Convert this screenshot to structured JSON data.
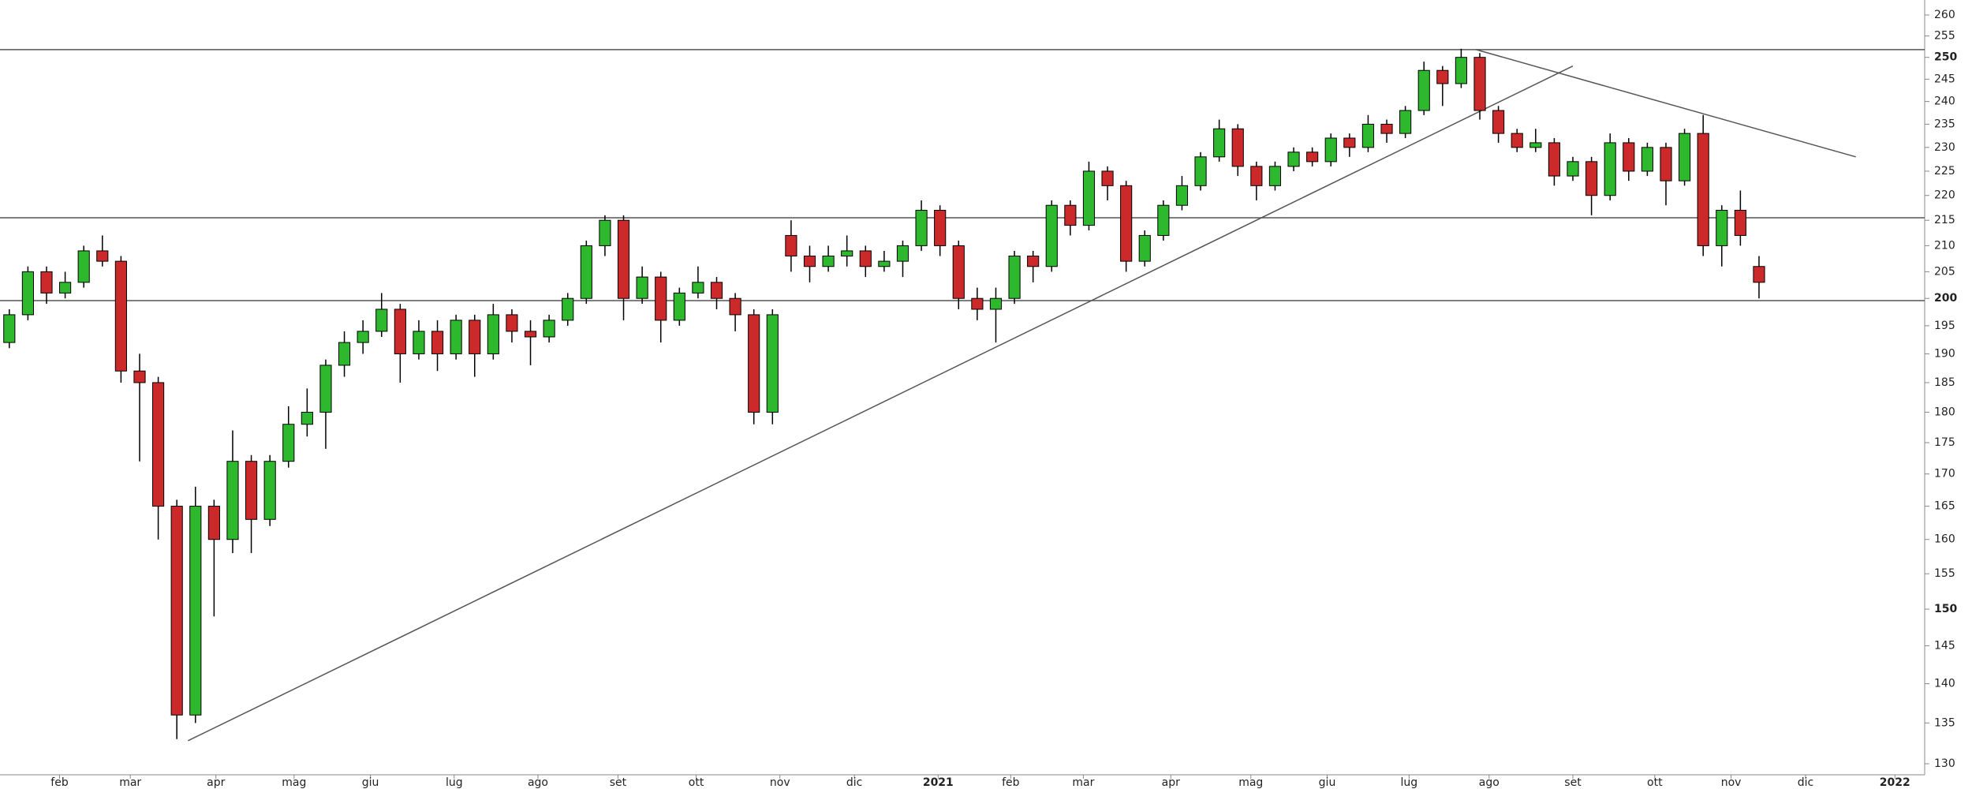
{
  "chart_data": {
    "type": "candlestick",
    "log_scale": true,
    "colors": {
      "up": "#2db82d",
      "down": "#cc2a2a",
      "outline": "#000000",
      "line": "#555555"
    },
    "open": [
      192,
      197,
      205,
      201,
      203,
      209,
      207,
      187,
      185,
      165,
      136,
      165,
      160,
      172,
      163,
      172,
      178,
      180,
      188,
      192,
      194,
      198,
      190,
      194,
      190,
      196,
      190,
      197,
      194,
      193,
      196,
      200,
      210,
      215,
      200,
      204,
      196,
      201,
      203,
      200,
      197,
      180,
      212,
      208,
      206,
      208,
      209,
      206,
      207,
      210,
      217,
      210,
      200,
      198,
      200,
      208,
      206,
      218,
      214,
      225,
      222,
      207,
      212,
      218,
      222,
      228,
      234,
      226,
      222,
      226,
      229,
      227,
      232,
      230,
      235,
      233,
      238,
      247,
      244,
      250,
      238,
      233,
      230,
      231,
      224,
      227,
      220,
      231,
      225,
      230,
      223,
      233,
      210,
      217,
      206
    ],
    "high": [
      198,
      206,
      206,
      205,
      210,
      212,
      208,
      190,
      186,
      166,
      168,
      166,
      177,
      173,
      173,
      181,
      184,
      189,
      194,
      196,
      201,
      199,
      196,
      196,
      197,
      197,
      199,
      198,
      196,
      197,
      201,
      211,
      216,
      216,
      206,
      205,
      202,
      206,
      204,
      201,
      198,
      198,
      215,
      210,
      210,
      212,
      210,
      209,
      211,
      219,
      218,
      211,
      202,
      202,
      209,
      209,
      219,
      219,
      227,
      226,
      223,
      213,
      219,
      224,
      229,
      236,
      235,
      227,
      227,
      230,
      230,
      233,
      233,
      237,
      236,
      239,
      249,
      248,
      252,
      251,
      239,
      234,
      234,
      232,
      228,
      228,
      233,
      232,
      231,
      231,
      234,
      237,
      218,
      221,
      208
    ],
    "low": [
      191,
      196,
      199,
      200,
      202,
      206,
      185,
      172,
      160,
      133,
      135,
      149,
      158,
      158,
      162,
      171,
      176,
      174,
      186,
      190,
      193,
      185,
      189,
      187,
      189,
      186,
      189,
      192,
      188,
      192,
      195,
      199,
      208,
      196,
      199,
      192,
      195,
      200,
      198,
      194,
      178,
      178,
      205,
      203,
      205,
      206,
      204,
      205,
      204,
      209,
      208,
      198,
      196,
      192,
      199,
      203,
      205,
      212,
      213,
      219,
      205,
      206,
      211,
      217,
      221,
      227,
      224,
      219,
      221,
      225,
      226,
      226,
      228,
      229,
      231,
      232,
      237,
      239,
      243,
      236,
      231,
      229,
      229,
      222,
      223,
      216,
      219,
      223,
      224,
      218,
      222,
      208,
      206,
      210,
      200
    ],
    "close": [
      197,
      205,
      201,
      203,
      209,
      207,
      187,
      185,
      165,
      136,
      165,
      160,
      172,
      163,
      172,
      178,
      180,
      188,
      192,
      194,
      198,
      190,
      194,
      190,
      196,
      190,
      197,
      194,
      193,
      196,
      200,
      210,
      215,
      200,
      204,
      196,
      201,
      203,
      200,
      197,
      180,
      197,
      208,
      206,
      208,
      209,
      206,
      207,
      210,
      217,
      210,
      200,
      198,
      200,
      208,
      206,
      218,
      214,
      225,
      222,
      207,
      212,
      218,
      222,
      228,
      234,
      226,
      222,
      226,
      229,
      227,
      232,
      230,
      235,
      233,
      238,
      247,
      244,
      250,
      238,
      233,
      230,
      231,
      224,
      227,
      220,
      231,
      225,
      230,
      223,
      233,
      210,
      217,
      212,
      203
    ],
    "xlim": [
      0,
      103.4
    ],
    "xticks": [
      {
        "value": 3.2,
        "label": "feb"
      },
      {
        "value": 7.0,
        "label": "mar"
      },
      {
        "value": 11.6,
        "label": "apr"
      },
      {
        "value": 15.8,
        "label": "mag"
      },
      {
        "value": 19.9,
        "label": "giu"
      },
      {
        "value": 24.4,
        "label": "lug"
      },
      {
        "value": 28.9,
        "label": "ago"
      },
      {
        "value": 33.2,
        "label": "set"
      },
      {
        "value": 37.4,
        "label": "ott"
      },
      {
        "value": 41.9,
        "label": "nov"
      },
      {
        "value": 45.9,
        "label": "dic"
      },
      {
        "value": 50.4,
        "label": "2021"
      },
      {
        "value": 54.3,
        "label": "feb"
      },
      {
        "value": 58.2,
        "label": "mar"
      },
      {
        "value": 62.9,
        "label": "apr"
      },
      {
        "value": 67.2,
        "label": "mag"
      },
      {
        "value": 71.3,
        "label": "giu"
      },
      {
        "value": 75.7,
        "label": "lug"
      },
      {
        "value": 80.0,
        "label": "ago"
      },
      {
        "value": 84.5,
        "label": "set"
      },
      {
        "value": 88.9,
        "label": "ott"
      },
      {
        "value": 93.0,
        "label": "nov"
      },
      {
        "value": 97.0,
        "label": "dic"
      },
      {
        "value": 101.8,
        "label": "2022"
      }
    ],
    "ylim": [
      130,
      260
    ],
    "yticks": [
      130,
      135,
      140,
      145,
      150,
      155,
      160,
      165,
      170,
      175,
      180,
      185,
      190,
      195,
      200,
      205,
      210,
      215,
      220,
      225,
      230,
      235,
      240,
      245,
      250,
      255,
      260
    ],
    "hlines": [
      251.8,
      215.5,
      199.6
    ],
    "trendlines": [
      {
        "x": [
          10.1,
          84.5
        ],
        "y": [
          132.8,
          248.0
        ]
      },
      {
        "x": [
          79.3,
          99.7
        ],
        "y": [
          251.8,
          228.0
        ]
      }
    ]
  }
}
